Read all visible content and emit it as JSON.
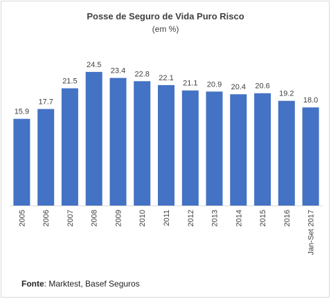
{
  "chart_data": {
    "type": "bar",
    "title": "Posse de Seguro de Vida Puro Risco",
    "subtitle": "(em %)",
    "categories": [
      "2005",
      "2006",
      "2007",
      "2008",
      "2009",
      "2010",
      "2011",
      "2012",
      "2013",
      "2014",
      "2015",
      "2016",
      "Jan-Set 2017"
    ],
    "values": [
      15.9,
      17.7,
      21.5,
      24.5,
      23.4,
      22.8,
      22.1,
      21.1,
      20.9,
      20.4,
      20.6,
      19.2,
      18.0
    ],
    "value_labels": [
      "15.9",
      "17.7",
      "21.5",
      "24.5",
      "23.4",
      "22.8",
      "22.1",
      "21.1",
      "20.9",
      "20.4",
      "20.6",
      "19.2",
      "18.0"
    ],
    "ylim": [
      0,
      25
    ],
    "bar_color": "#4472c4",
    "grid": false,
    "legend": "none"
  },
  "source": {
    "label": "Fonte",
    "text": ": Marktest, Basef Seguros"
  }
}
